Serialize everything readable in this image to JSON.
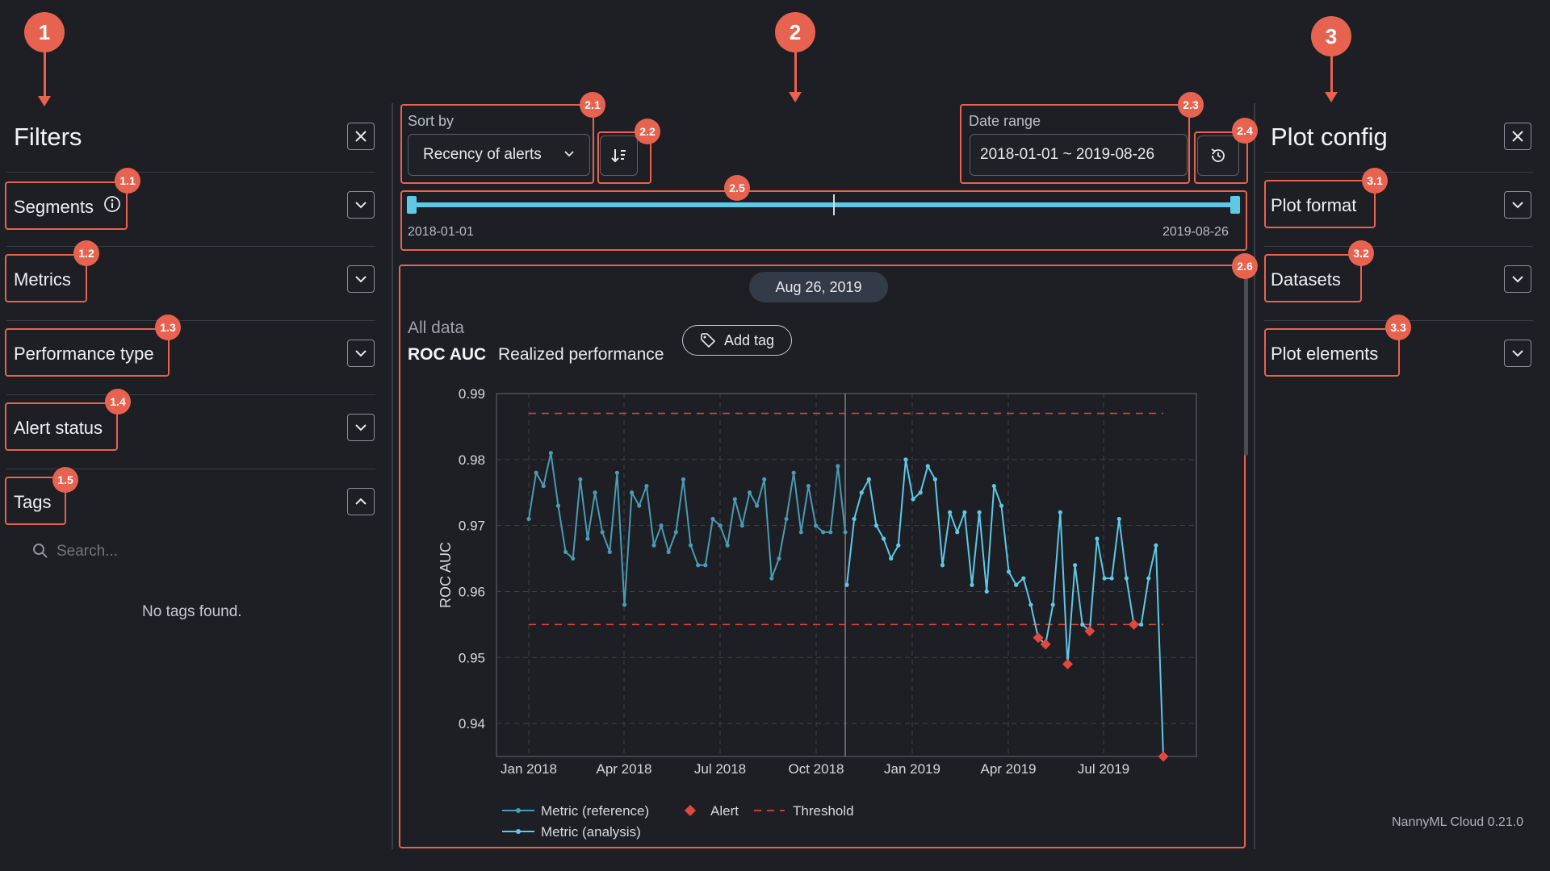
{
  "callouts": [
    "1",
    "2",
    "3"
  ],
  "filters": {
    "title": "Filters",
    "sections": [
      {
        "badge": "1.1",
        "label": "Segments"
      },
      {
        "badge": "1.2",
        "label": "Metrics"
      },
      {
        "badge": "1.3",
        "label": "Performance type"
      },
      {
        "badge": "1.4",
        "label": "Alert status"
      },
      {
        "badge": "1.5",
        "label": "Tags"
      }
    ],
    "tags_search_placeholder": "Search...",
    "tags_empty": "No tags found."
  },
  "main": {
    "sort_label": "Sort by",
    "sort_value": "Recency of alerts",
    "date_label": "Date range",
    "date_value": "2018-01-01 ~ 2019-08-26",
    "slider_start": "2018-01-01",
    "slider_end": "2019-08-26",
    "slider_range": {
      "start": "2018-01-01",
      "end": "2019-08-26"
    },
    "badges": [
      "2.1",
      "2.2",
      "2.3",
      "2.4",
      "2.5",
      "2.6"
    ],
    "date_pill": "Aug 26, 2019",
    "subtitle": "All data",
    "metric_name": "ROC AUC",
    "metric_kind": "Realized performance",
    "add_tag": "Add tag"
  },
  "plot_config": {
    "title": "Plot config",
    "sections": [
      {
        "badge": "3.1",
        "label": "Plot format"
      },
      {
        "badge": "3.2",
        "label": "Datasets"
      },
      {
        "badge": "3.3",
        "label": "Plot elements"
      }
    ]
  },
  "version": "NannyML Cloud 0.21.0",
  "colors": {
    "accent": "#e8634f",
    "reference": "#4a9bb3",
    "analysis": "#5ec8e6",
    "alert": "#e0483e",
    "threshold": "#d9453c"
  },
  "chart_data": {
    "type": "line",
    "ylabel": "ROC AUC",
    "ylim": [
      0.935,
      0.99
    ],
    "y_ticks": [
      "0.99",
      "0.98",
      "0.97",
      "0.96",
      "0.95",
      "0.94"
    ],
    "x_ticks": [
      "Jan 2018",
      "Apr 2018",
      "Jul 2018",
      "Oct 2018",
      "Jan 2019",
      "Apr 2019",
      "Jul 2019"
    ],
    "thresholds": {
      "upper": 0.987,
      "lower": 0.955
    },
    "reference": {
      "name": "Metric (reference)",
      "values": [
        0.971,
        0.978,
        0.976,
        0.981,
        0.973,
        0.966,
        0.965,
        0.977,
        0.968,
        0.975,
        0.969,
        0.966,
        0.978,
        0.958,
        0.975,
        0.973,
        0.976,
        0.967,
        0.97,
        0.966,
        0.969,
        0.977,
        0.967,
        0.964,
        0.964,
        0.971,
        0.97,
        0.967,
        0.974,
        0.97,
        0.975,
        0.973,
        0.977,
        0.962,
        0.965,
        0.971,
        0.978,
        0.969,
        0.976,
        0.97,
        0.969,
        0.969,
        0.979,
        0.969
      ]
    },
    "analysis": {
      "name": "Metric (analysis)",
      "values": [
        0.961,
        0.971,
        0.975,
        0.977,
        0.97,
        0.968,
        0.965,
        0.967,
        0.98,
        0.974,
        0.975,
        0.979,
        0.977,
        0.964,
        0.972,
        0.969,
        0.972,
        0.961,
        0.972,
        0.96,
        0.976,
        0.973,
        0.963,
        0.961,
        0.962,
        0.958,
        0.953,
        0.952,
        0.958,
        0.972,
        0.949,
        0.964,
        0.955,
        0.954,
        0.968,
        0.962,
        0.962,
        0.971,
        0.962,
        0.955,
        0.955,
        0.962,
        0.967,
        0.935
      ]
    },
    "alerts": [
      {
        "index": 26,
        "value": 0.953
      },
      {
        "index": 27,
        "value": 0.952
      },
      {
        "index": 30,
        "value": 0.949
      },
      {
        "index": 33,
        "value": 0.954
      },
      {
        "index": 39,
        "value": 0.955
      },
      {
        "index": 43,
        "value": 0.935
      }
    ],
    "legend": [
      "Metric (reference)",
      "Alert",
      "Threshold",
      "Metric (analysis)"
    ]
  }
}
